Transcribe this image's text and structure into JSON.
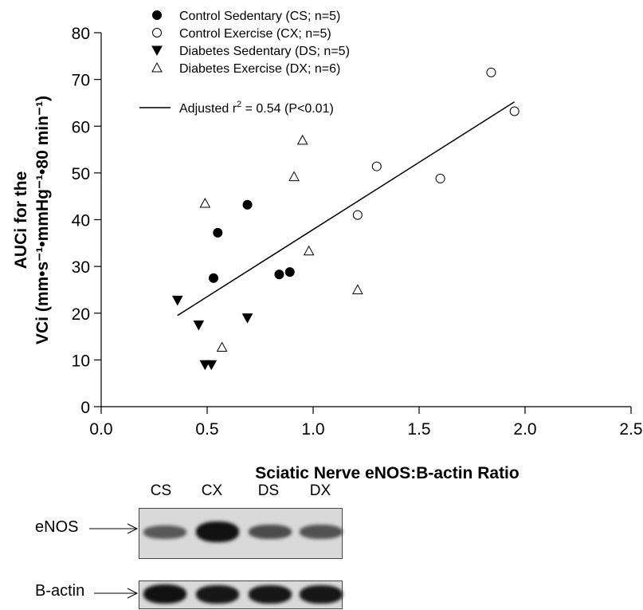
{
  "chart_data": {
    "type": "scatter",
    "xlabel": "Sciatic Nerve eNOS:B-actin Ratio",
    "ylabel_line1": "AUCi for the",
    "ylabel_line2": "VCi (mm•s⁻¹•mmHg⁻¹•80 min⁻¹)",
    "xlim": [
      0.0,
      2.5
    ],
    "ylim": [
      0,
      80
    ],
    "x_ticks": [
      0.0,
      0.5,
      1.0,
      1.5,
      2.0,
      2.5
    ],
    "x_tick_labels": [
      "0.0",
      "0.5",
      "1.0",
      "1.5",
      "2.0",
      "2.5"
    ],
    "y_ticks": [
      0,
      10,
      20,
      30,
      40,
      50,
      60,
      70,
      80
    ],
    "y_tick_labels": [
      "0",
      "10",
      "20",
      "30",
      "40",
      "50",
      "60",
      "70",
      "80"
    ],
    "legend_placement": "top-left",
    "series": [
      {
        "name": "Control Sedentary (CS; n=5)",
        "marker": "filled-circle",
        "points": [
          [
            0.53,
            27.5
          ],
          [
            0.55,
            37.2
          ],
          [
            0.69,
            43.2
          ],
          [
            0.84,
            28.3
          ],
          [
            0.89,
            28.8
          ]
        ]
      },
      {
        "name": "Control Exercise (CX; n=5)",
        "marker": "open-circle",
        "points": [
          [
            1.21,
            41.0
          ],
          [
            1.3,
            51.4
          ],
          [
            1.6,
            48.8
          ],
          [
            1.84,
            71.5
          ],
          [
            1.95,
            63.2
          ]
        ]
      },
      {
        "name": "Diabetes Sedentary (DS; n=5)",
        "marker": "filled-triangle-down",
        "points": [
          [
            0.36,
            22.8
          ],
          [
            0.46,
            17.5
          ],
          [
            0.49,
            9.0
          ],
          [
            0.52,
            9.0
          ],
          [
            0.69,
            19.0
          ]
        ]
      },
      {
        "name": "Diabetes Exercise (DX; n=6)",
        "marker": "open-triangle-up",
        "points": [
          [
            0.49,
            43.5
          ],
          [
            0.57,
            12.7
          ],
          [
            0.91,
            49.2
          ],
          [
            0.95,
            57.0
          ],
          [
            0.98,
            33.3
          ],
          [
            1.21,
            25.0
          ]
        ]
      }
    ],
    "fit_line": {
      "label_prefix": "Adjusted r",
      "label_sup": "2",
      "label_suffix": " = 0.54 (P<0.01)",
      "points": [
        [
          0.36,
          19.5
        ],
        [
          1.95,
          65.2
        ]
      ]
    }
  },
  "blot": {
    "lanes": [
      "CS",
      "CX",
      "DS",
      "DX"
    ],
    "row_labels": [
      "eNOS",
      "B-actin"
    ],
    "enos_intensity": [
      0.45,
      1.0,
      0.55,
      0.5
    ],
    "actin_intensity": [
      1.0,
      0.95,
      0.95,
      0.95
    ],
    "colors": {
      "band": "#111111",
      "membrane": "#d9d9d9"
    }
  }
}
